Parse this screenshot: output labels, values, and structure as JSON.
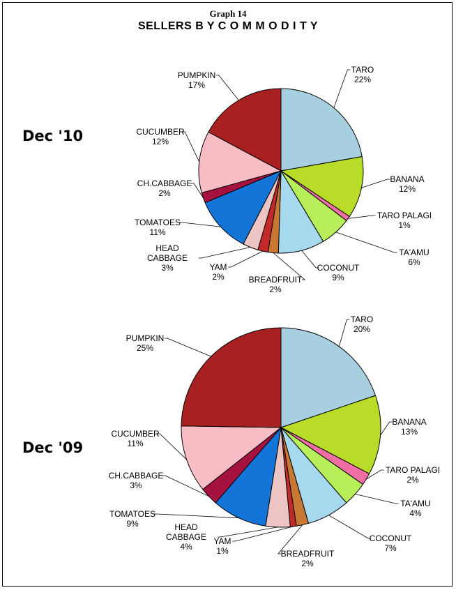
{
  "graph_label": "Graph 14",
  "title": "SELLERS  B Y  C O M M O D I T Y",
  "colors": {
    "TARO": "#a8cfe0",
    "BANANA": "#b9dc28",
    "TARO PALAGI": "#ef6fa4",
    "TA'AMU": "#b7ee5a",
    "COCONUT": "#a6d8ee",
    "BREADFRUIT": "#c87832",
    "YAM": "#c22a2a",
    "HEAD CABBAGE": "#ecc4c4",
    "TOMATOES": "#1475d8",
    "CH.CABBAGE": "#a51240",
    "CUCUMBER": "#f7bcc4",
    "PUMPKIN": "#a82020"
  },
  "chart_data": [
    {
      "type": "pie",
      "panel_label": "Dec '10",
      "slices": [
        {
          "name": "TARO",
          "value": 22,
          "label": "22%"
        },
        {
          "name": "BANANA",
          "value": 12,
          "label": "12%"
        },
        {
          "name": "TARO PALAGI",
          "value": 1,
          "label": "1%"
        },
        {
          "name": "TA'AMU",
          "value": 6,
          "label": "6%"
        },
        {
          "name": "COCONUT",
          "value": 9,
          "label": "9%"
        },
        {
          "name": "BREADFRUIT",
          "value": 2,
          "label": "2%"
        },
        {
          "name": "YAM",
          "value": 2,
          "label": "2%"
        },
        {
          "name": "HEAD CABBAGE",
          "value": 3,
          "label": "3%"
        },
        {
          "name": "TOMATOES",
          "value": 11,
          "label": "11%"
        },
        {
          "name": "CH.CABBAGE",
          "value": 2,
          "label": "2%"
        },
        {
          "name": "CUCUMBER",
          "value": 12,
          "label": "12%"
        },
        {
          "name": "PUMPKIN",
          "value": 17,
          "label": "17%"
        }
      ]
    },
    {
      "type": "pie",
      "panel_label": "Dec '09",
      "slices": [
        {
          "name": "TARO",
          "value": 20,
          "label": "20%"
        },
        {
          "name": "BANANA",
          "value": 13,
          "label": "13%"
        },
        {
          "name": "TARO PALAGI",
          "value": 2,
          "label": "2%"
        },
        {
          "name": "TA'AMU",
          "value": 4,
          "label": "4%"
        },
        {
          "name": "COCONUT",
          "value": 7,
          "label": "7%"
        },
        {
          "name": "BREADFRUIT",
          "value": 2,
          "label": "2%"
        },
        {
          "name": "YAM",
          "value": 1,
          "label": "1%"
        },
        {
          "name": "HEAD CABBAGE",
          "value": 4,
          "label": "4%"
        },
        {
          "name": "TOMATOES",
          "value": 9,
          "label": "9%"
        },
        {
          "name": "CH.CABBAGE",
          "value": 3,
          "label": "3%"
        },
        {
          "name": "CUCUMBER",
          "value": 11,
          "label": "11%"
        },
        {
          "name": "PUMPKIN",
          "value": 25,
          "label": "25%"
        }
      ]
    }
  ]
}
